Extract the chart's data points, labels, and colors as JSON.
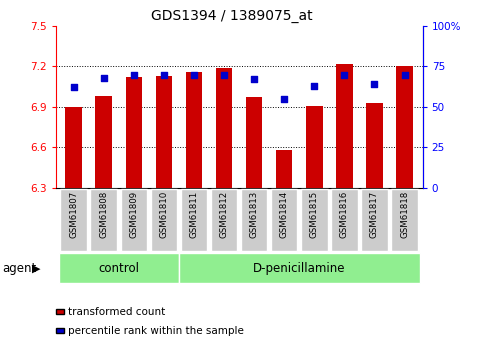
{
  "title": "GDS1394 / 1389075_at",
  "samples": [
    "GSM61807",
    "GSM61808",
    "GSM61809",
    "GSM61810",
    "GSM61811",
    "GSM61812",
    "GSM61813",
    "GSM61814",
    "GSM61815",
    "GSM61816",
    "GSM61817",
    "GSM61818"
  ],
  "bar_values": [
    6.9,
    6.98,
    7.12,
    7.13,
    7.16,
    7.19,
    6.97,
    6.58,
    6.91,
    7.22,
    6.93,
    7.2
  ],
  "percentile_values": [
    62,
    68,
    70,
    70,
    70,
    70,
    67,
    55,
    63,
    70,
    64,
    70
  ],
  "bar_bottom": 6.3,
  "ylim_left": [
    6.3,
    7.5
  ],
  "ylim_right": [
    0,
    100
  ],
  "yticks_left": [
    6.3,
    6.6,
    6.9,
    7.2,
    7.5
  ],
  "yticks_right": [
    0,
    25,
    50,
    75,
    100
  ],
  "ytick_labels_right": [
    "0",
    "25",
    "50",
    "75",
    "100%"
  ],
  "grid_values": [
    6.6,
    6.9,
    7.2
  ],
  "bar_color": "#cc0000",
  "dot_color": "#0000cc",
  "control_label": "control",
  "treatment_label": "D-penicillamine",
  "agent_label": "agent",
  "legend_bar_label": "transformed count",
  "legend_dot_label": "percentile rank within the sample",
  "n_control": 4,
  "background_color": "#ffffff",
  "group_box_color": "#90ee90",
  "tick_bg_color": "#cccccc",
  "title_fontsize": 10,
  "tick_fontsize": 7.5,
  "label_fontsize": 8.5
}
